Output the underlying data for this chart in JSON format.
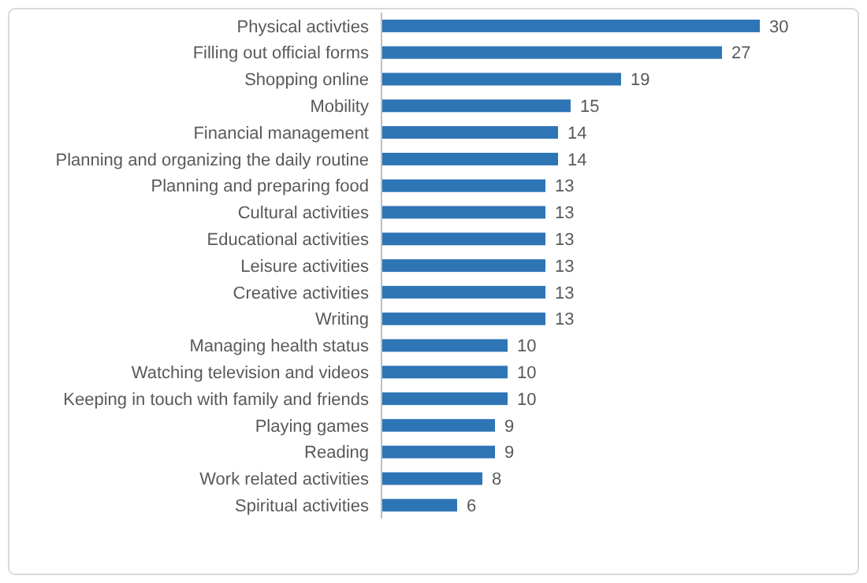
{
  "chart_data": {
    "type": "bar",
    "orientation": "horizontal",
    "data_labels": true,
    "color": "#2e75b6",
    "categories": [
      "Physical activties",
      "Filling out official forms",
      "Shopping online",
      "Mobility",
      "Financial management",
      "Planning and organizing the daily routine",
      "Planning and preparing food",
      "Cultural activities",
      "Educational activities",
      "Leisure activities",
      "Creative activities",
      "Writing",
      "Managing health status",
      "Watching television and videos",
      "Keeping in touch with family and friends",
      "Playing games",
      "Reading",
      "Work related activities",
      "Spiritual activities"
    ],
    "values": [
      30,
      27,
      19,
      15,
      14,
      14,
      13,
      13,
      13,
      13,
      13,
      13,
      10,
      10,
      10,
      9,
      9,
      8,
      6
    ]
  }
}
